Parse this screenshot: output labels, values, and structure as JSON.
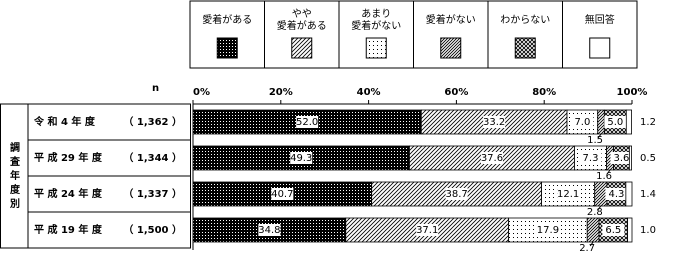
{
  "chart_data": {
    "type": "stacked-bar-horizontal",
    "y_title": "調査年度別",
    "n_label": "n",
    "categories": [
      "令 和 4 年 度",
      "平 成 29 年 度",
      "平 成 24 年 度",
      "平 成 19 年 度"
    ],
    "n_labels": [
      "（ 1,362 ）",
      "（ 1,344 ）",
      "（ 1,337 ）",
      "（ 1,500 ）"
    ],
    "xlim": [
      0,
      100
    ],
    "xticks": [
      {
        "value": 0,
        "label": "0%"
      },
      {
        "value": 20,
        "label": "20%"
      },
      {
        "value": 40,
        "label": "40%"
      },
      {
        "value": 60,
        "label": "60%"
      },
      {
        "value": 80,
        "label": "80%"
      },
      {
        "value": 100,
        "label": "100%"
      }
    ],
    "series": [
      {
        "name": "愛着がある",
        "color": "#000000",
        "values": [
          52.0,
          49.3,
          40.7,
          34.8
        ],
        "value_labels": [
          "52.0",
          "49.3",
          "40.7",
          "34.8"
        ]
      },
      {
        "name": "やや\n愛着がある",
        "color": "#555555",
        "values": [
          33.2,
          37.6,
          38.7,
          37.1
        ],
        "value_labels": [
          "33.2",
          "37.6",
          "38.7",
          "37.1"
        ]
      },
      {
        "name": "あまり\n愛着がない",
        "color": "#aaaaaa",
        "values": [
          7.0,
          7.3,
          12.1,
          17.9
        ],
        "value_labels": [
          "7.0",
          "7.3",
          "12.1",
          "17.9"
        ]
      },
      {
        "name": "愛着がない",
        "color": "#333333",
        "values": [
          1.5,
          1.6,
          2.8,
          2.7
        ],
        "value_labels": [
          "1.5",
          "1.6",
          "2.8",
          "2.7"
        ]
      },
      {
        "name": "わからない",
        "color": "#222222",
        "values": [
          5.0,
          3.6,
          4.3,
          6.5
        ],
        "value_labels": [
          "5.0",
          "3.6",
          "4.3",
          "6.5"
        ]
      },
      {
        "name": "無回答",
        "color": "#ffffff",
        "values": [
          1.2,
          0.5,
          1.4,
          1.0
        ],
        "value_labels": [
          "1.2",
          "0.5",
          "1.4",
          "1.0"
        ]
      }
    ]
  }
}
